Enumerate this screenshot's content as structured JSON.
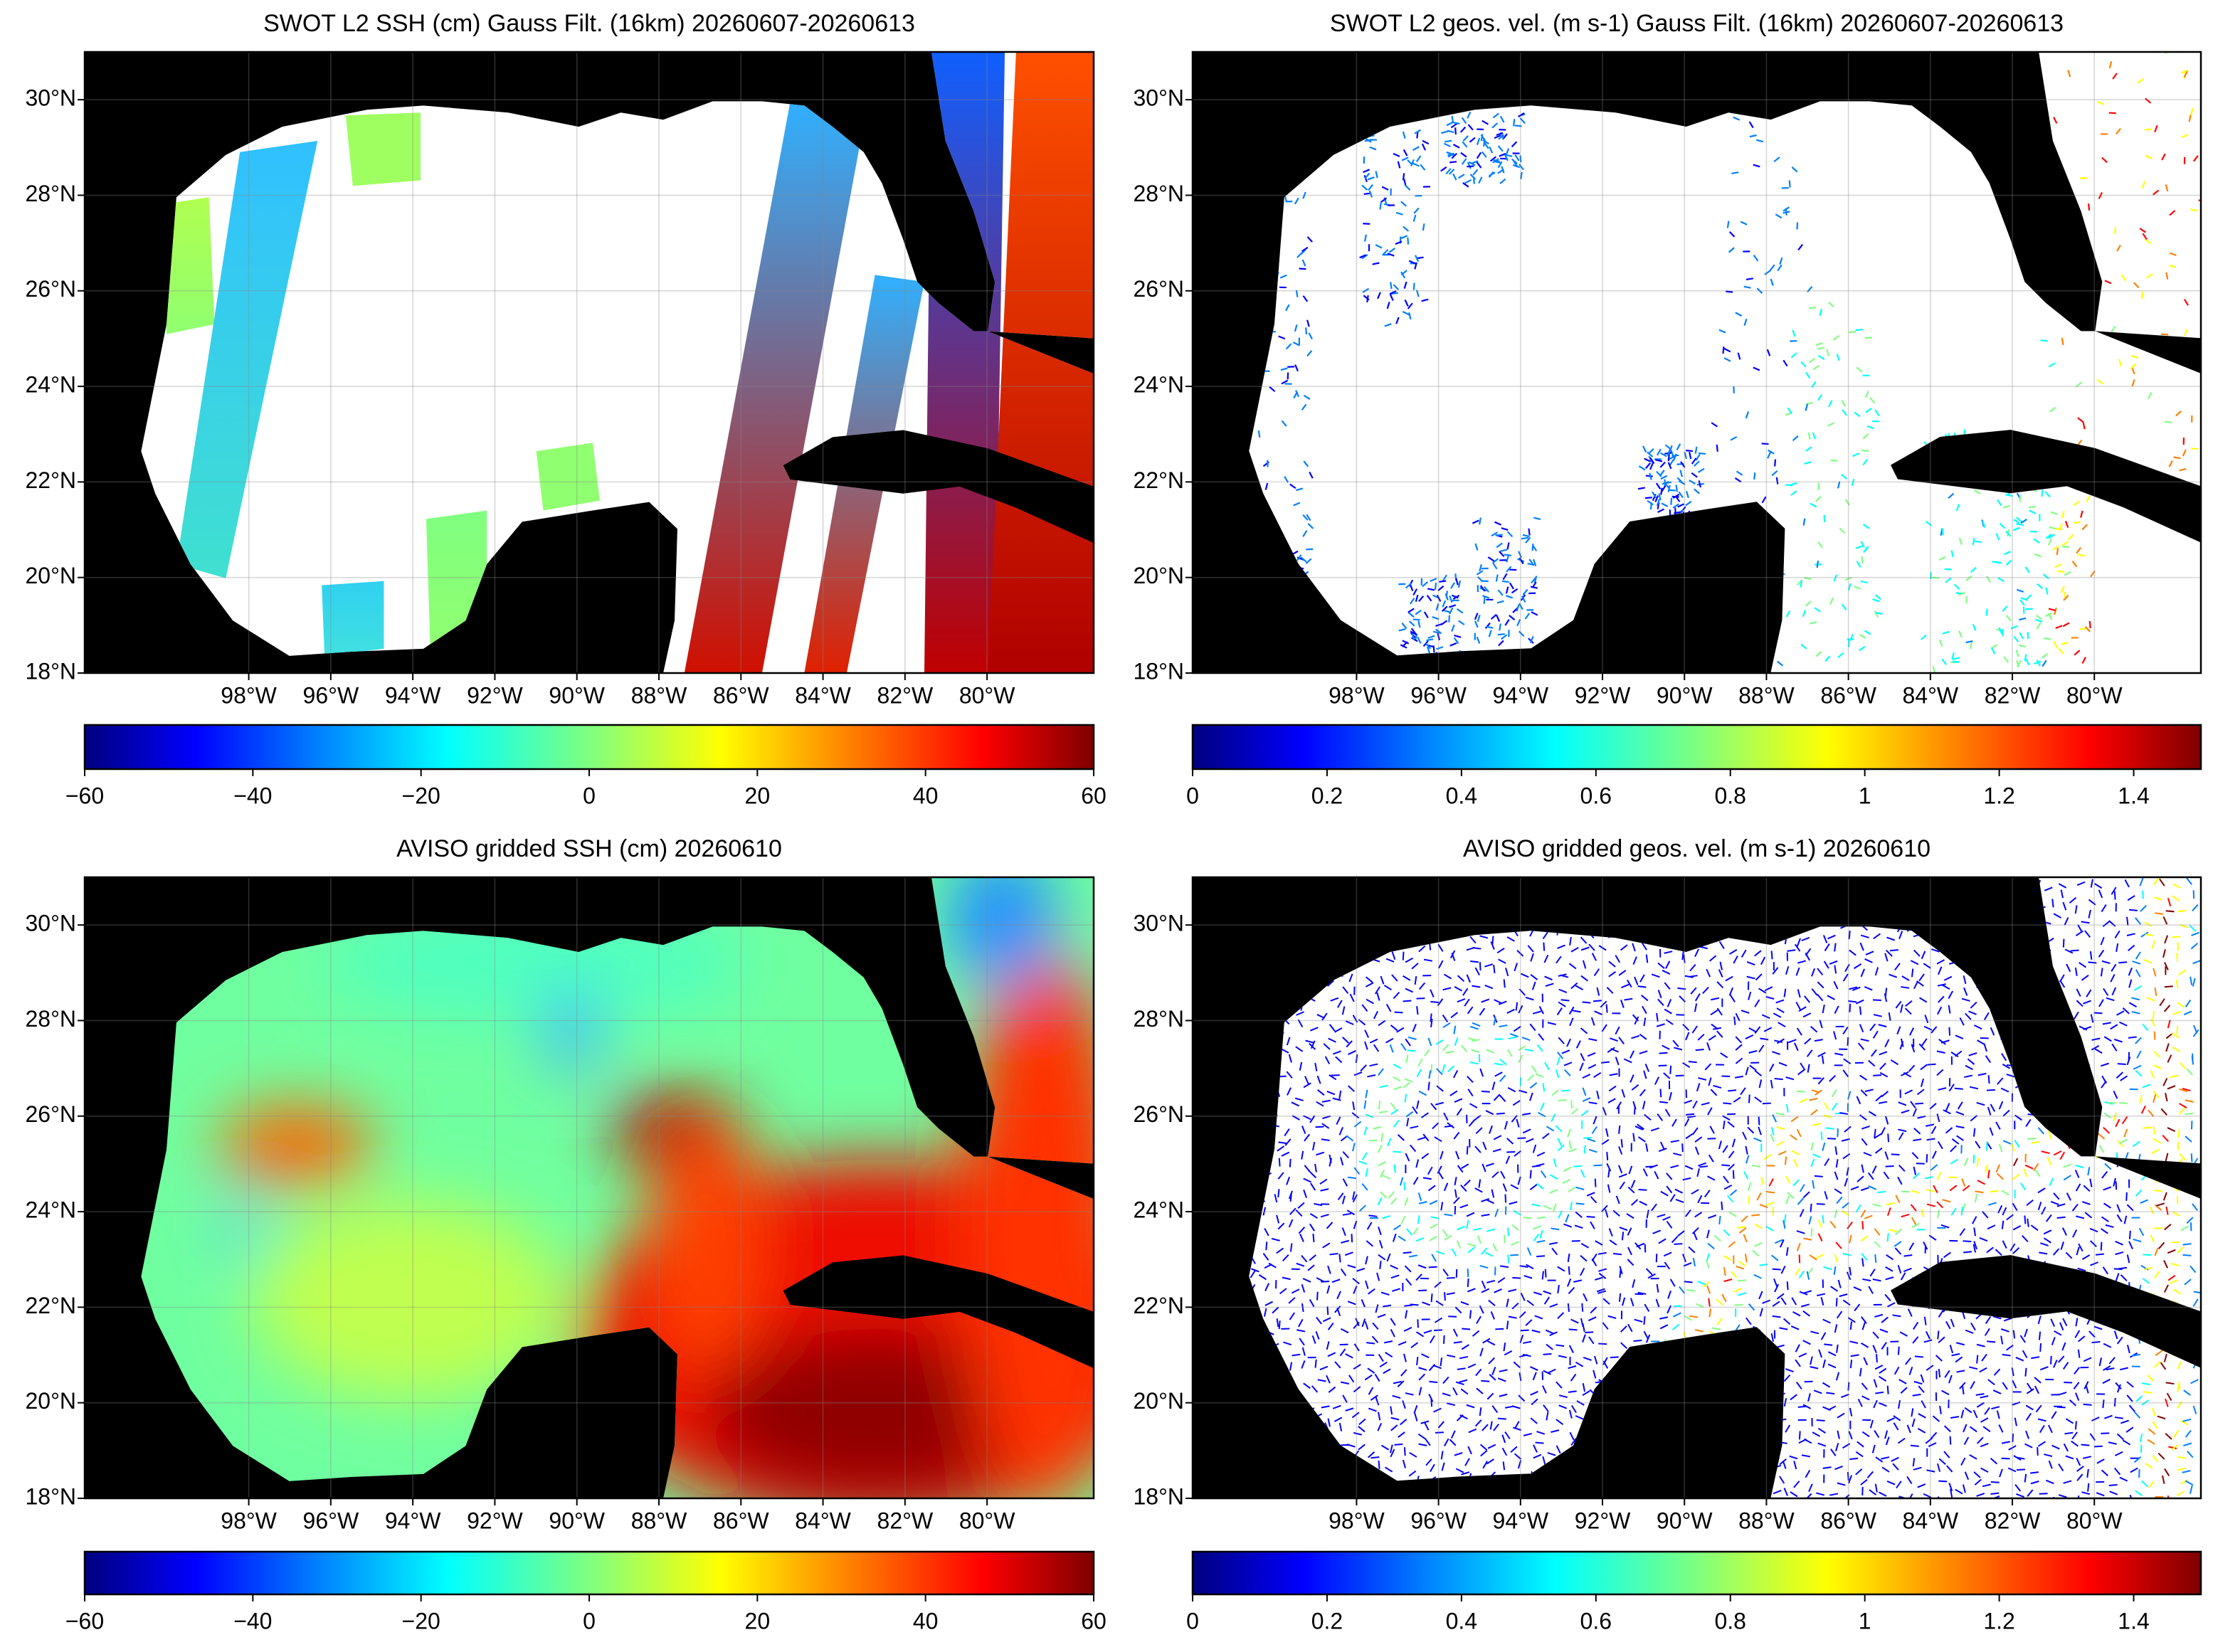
{
  "panels": [
    {
      "title": "SWOT L2 SSH (cm) Gauss Filt. (16km) 20260607-20260613",
      "xlim": [
        -102,
        -77.4
      ],
      "ylim": [
        18,
        31
      ],
      "xticks": [
        {
          "value": -98,
          "label": "98°W"
        },
        {
          "value": -96,
          "label": "96°W"
        },
        {
          "value": -94,
          "label": "94°W"
        },
        {
          "value": -92,
          "label": "92°W"
        },
        {
          "value": -90,
          "label": "90°W"
        },
        {
          "value": -88,
          "label": "88°W"
        },
        {
          "value": -86,
          "label": "86°W"
        },
        {
          "value": -84,
          "label": "84°W"
        },
        {
          "value": -82,
          "label": "82°W"
        },
        {
          "value": -80,
          "label": "80°W"
        }
      ],
      "yticks": [
        {
          "value": 18,
          "label": "18°N"
        },
        {
          "value": 20,
          "label": "20°N"
        },
        {
          "value": 22,
          "label": "22°N"
        },
        {
          "value": 24,
          "label": "24°N"
        },
        {
          "value": 26,
          "label": "26°N"
        },
        {
          "value": 28,
          "label": "28°N"
        },
        {
          "value": 30,
          "label": "30°N"
        }
      ],
      "colorbar": {
        "lim": [
          -60,
          60
        ],
        "ticks": [
          {
            "value": -60,
            "label": "−60"
          },
          {
            "value": -40,
            "label": "−40"
          },
          {
            "value": -20,
            "label": "−20"
          },
          0,
          20,
          40,
          60
        ]
      }
    },
    {
      "title": "SWOT L2 geos. vel. (m s-1) Gauss Filt. (16km) 20260607-20260613",
      "xlim": [
        -102,
        -77.4
      ],
      "ylim": [
        18,
        31
      ],
      "xticks": [
        {
          "value": -98,
          "label": "98°W"
        },
        {
          "value": -96,
          "label": "96°W"
        },
        {
          "value": -94,
          "label": "94°W"
        },
        {
          "value": -92,
          "label": "92°W"
        },
        {
          "value": -90,
          "label": "90°W"
        },
        {
          "value": -88,
          "label": "88°W"
        },
        {
          "value": -86,
          "label": "86°W"
        },
        {
          "value": -84,
          "label": "84°W"
        },
        {
          "value": -82,
          "label": "82°W"
        },
        {
          "value": -80,
          "label": "80°W"
        }
      ],
      "yticks": [
        {
          "value": 18,
          "label": "18°N"
        },
        {
          "value": 20,
          "label": "20°N"
        },
        {
          "value": 22,
          "label": "22°N"
        },
        {
          "value": 24,
          "label": "24°N"
        },
        {
          "value": 26,
          "label": "26°N"
        },
        {
          "value": 28,
          "label": "28°N"
        },
        {
          "value": 30,
          "label": "30°N"
        }
      ],
      "colorbar": {
        "lim": [
          0,
          1.5
        ],
        "ticks": [
          0,
          0.2,
          0.4,
          0.6,
          0.8,
          1,
          1.2,
          1.4
        ]
      }
    },
    {
      "title": "AVISO gridded SSH (cm) 20260610",
      "xlim": [
        -102,
        -77.4
      ],
      "ylim": [
        18,
        31
      ],
      "xticks": [
        {
          "value": -98,
          "label": "98°W"
        },
        {
          "value": -96,
          "label": "96°W"
        },
        {
          "value": -94,
          "label": "94°W"
        },
        {
          "value": -92,
          "label": "92°W"
        },
        {
          "value": -90,
          "label": "90°W"
        },
        {
          "value": -88,
          "label": "88°W"
        },
        {
          "value": -86,
          "label": "86°W"
        },
        {
          "value": -84,
          "label": "84°W"
        },
        {
          "value": -82,
          "label": "82°W"
        },
        {
          "value": -80,
          "label": "80°W"
        }
      ],
      "yticks": [
        {
          "value": 18,
          "label": "18°N"
        },
        {
          "value": 20,
          "label": "20°N"
        },
        {
          "value": 22,
          "label": "22°N"
        },
        {
          "value": 24,
          "label": "24°N"
        },
        {
          "value": 26,
          "label": "26°N"
        },
        {
          "value": 28,
          "label": "28°N"
        },
        {
          "value": 30,
          "label": "30°N"
        }
      ],
      "colorbar": {
        "lim": [
          -60,
          60
        ],
        "ticks": [
          {
            "value": -60,
            "label": "−60"
          },
          {
            "value": -40,
            "label": "−40"
          },
          {
            "value": -20,
            "label": "−20"
          },
          0,
          20,
          40,
          60
        ]
      }
    },
    {
      "title": "AVISO gridded geos. vel. (m s-1)  20260610",
      "xlim": [
        -102,
        -77.4
      ],
      "ylim": [
        18,
        31
      ],
      "xticks": [
        {
          "value": -98,
          "label": "98°W"
        },
        {
          "value": -96,
          "label": "96°W"
        },
        {
          "value": -94,
          "label": "94°W"
        },
        {
          "value": -92,
          "label": "92°W"
        },
        {
          "value": -90,
          "label": "90°W"
        },
        {
          "value": -88,
          "label": "88°W"
        },
        {
          "value": -86,
          "label": "86°W"
        },
        {
          "value": -84,
          "label": "84°W"
        },
        {
          "value": -82,
          "label": "82°W"
        },
        {
          "value": -80,
          "label": "80°W"
        }
      ],
      "yticks": [
        {
          "value": 18,
          "label": "18°N"
        },
        {
          "value": 20,
          "label": "20°N"
        },
        {
          "value": 22,
          "label": "22°N"
        },
        {
          "value": 24,
          "label": "24°N"
        },
        {
          "value": 26,
          "label": "26°N"
        },
        {
          "value": 28,
          "label": "28°N"
        },
        {
          "value": 30,
          "label": "30°N"
        }
      ],
      "colorbar": {
        "lim": [
          0,
          1.5
        ],
        "ticks": [
          0,
          0.2,
          0.4,
          0.6,
          0.8,
          1,
          1.2,
          1.4
        ]
      }
    }
  ]
}
